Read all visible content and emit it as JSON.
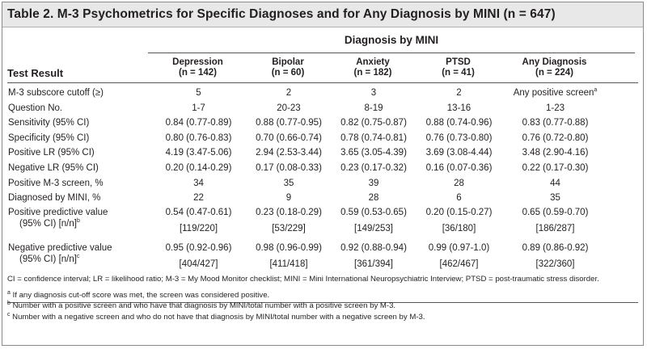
{
  "title": "Table 2. M-3 Psychometrics for Specific Diagnoses and for Any Diagnosis by MINI (n = 647)",
  "group_header": "Diagnosis by MINI",
  "row_header": "Test Result",
  "columns": [
    {
      "name": "Depression",
      "n": "(n = 142)"
    },
    {
      "name": "Bipolar",
      "n": "(n = 60)"
    },
    {
      "name": "Anxiety",
      "n": "(n = 182)"
    },
    {
      "name": "PTSD",
      "n": "(n = 41)"
    },
    {
      "name": "Any Diagnosis",
      "n": "(n = 224)"
    }
  ],
  "rows": [
    {
      "label": "M-3 subscore cutoff (≥)",
      "values": [
        "5",
        "2",
        "3",
        "2",
        "Any positive screen"
      ],
      "sup_last": "a"
    },
    {
      "label": "Question No.",
      "values": [
        "1-7",
        "20-23",
        "8-19",
        "13-16",
        "1-23"
      ]
    },
    {
      "label": "Sensitivity (95% CI)",
      "values": [
        "0.84 (0.77-0.89)",
        "0.88 (0.77-0.95)",
        "0.82 (0.75-0.87)",
        "0.88 (0.74-0.96)",
        "0.83 (0.77-0.88)"
      ]
    },
    {
      "label": "Specificity (95% CI)",
      "values": [
        "0.80 (0.76-0.83)",
        "0.70 (0.66-0.74)",
        "0.78 (0.74-0.81)",
        "0.76 (0.73-0.80)",
        "0.76 (0.72-0.80)"
      ]
    },
    {
      "label": "Positive LR (95% CI)",
      "values": [
        "4.19 (3.47-5.06)",
        "2.94 (2.53-3.44)",
        "3.65 (3.05-4.39)",
        "3.69 (3.08-4.44)",
        "3.48 (2.90-4.16)"
      ]
    },
    {
      "label": "Negative LR (95% CI)",
      "values": [
        "0.20 (0.14-0.29)",
        "0.17 (0.08-0.33)",
        "0.23 (0.17-0.32)",
        "0.16 (0.07-0.36)",
        "0.22 (0.17-0.30)"
      ]
    },
    {
      "label": "Positive M-3 screen, %",
      "values": [
        "34",
        "35",
        "39",
        "28",
        "44"
      ]
    },
    {
      "label": "Diagnosed by MINI, %",
      "values": [
        "22",
        "9",
        "28",
        "6",
        "35"
      ]
    }
  ],
  "ppv": {
    "label_line1": "Positive predictive value",
    "label_line2": "(95% CI) [n/n]",
    "sup": "b",
    "values": [
      "0.54 (0.47-0.61)",
      "0.23 (0.18-0.29)",
      "0.59 (0.53-0.65)",
      "0.20 (0.15-0.27)",
      "0.65 (0.59-0.70)"
    ],
    "counts": [
      "[119/220]",
      "[53/229]",
      "[149/253]",
      "[36/180]",
      "[186/287]"
    ]
  },
  "npv": {
    "label_line1": "Negative predictive value",
    "label_line2": "(95% CI) [n/n]",
    "sup": "c",
    "values": [
      "0.95 (0.92-0.96)",
      "0.98 (0.96-0.99)",
      "0.92 (0.88-0.94)",
      "0.99 (0.97-1.0)",
      "0.89 (0.86-0.92)"
    ],
    "counts": [
      "[404/427]",
      "[411/418]",
      "[361/394]",
      "[462/467]",
      "[322/360]"
    ]
  },
  "notes": {
    "abbreviations": "CI = confidence interval; LR = likelihood ratio; M-3 = My Mood Monitor checklist; MINI = Mini International Neuropsychiatric Interview; PTSD = post-traumatic stress disorder.",
    "footnotes": [
      {
        "mark": "a",
        "text": "If any diagnosis cut-off score was met, the screen was considered positive."
      },
      {
        "mark": "b",
        "text": "Number with a positive screen and who have that diagnosis by MINI/total number with a positive screen by M-3."
      },
      {
        "mark": "c",
        "text": "Number with a negative screen and who do not have that diagnosis by MINI/total number with a negative screen by M-3."
      }
    ]
  }
}
